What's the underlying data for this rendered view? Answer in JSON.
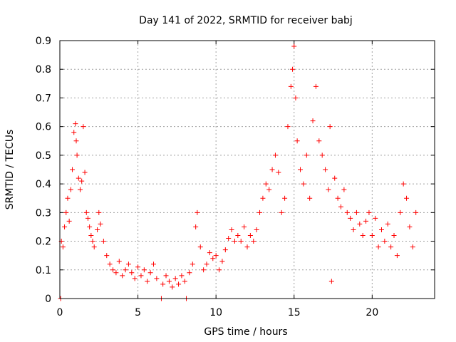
{
  "chart_data": {
    "type": "scatter",
    "title": "Day 141 of 2022, SRMTID for receiver babj",
    "xlabel": "GPS time / hours",
    "ylabel": "SRMTID / TECUs",
    "xlim": [
      0,
      24
    ],
    "ylim": [
      0,
      0.9
    ],
    "xticks": [
      0,
      5,
      10,
      15,
      20
    ],
    "yticks": [
      0,
      0.1,
      0.2,
      0.3,
      0.4,
      0.5,
      0.6,
      0.7,
      0.8,
      0.9
    ],
    "xtick_labels": [
      "0",
      "5",
      "10",
      "15",
      "20"
    ],
    "ytick_labels": [
      "0",
      "0.1",
      "0.2",
      "0.3",
      "0.4",
      "0.5",
      "0.6",
      "0.7",
      "0.8",
      "0.9"
    ],
    "grid": true,
    "marker": "+",
    "color": "#ff0000",
    "series": [
      {
        "name": "SRMTID",
        "points": [
          [
            0.05,
            0.0
          ],
          [
            0.1,
            0.2
          ],
          [
            0.2,
            0.18
          ],
          [
            0.3,
            0.25
          ],
          [
            0.4,
            0.3
          ],
          [
            0.5,
            0.35
          ],
          [
            0.6,
            0.27
          ],
          [
            0.7,
            0.38
          ],
          [
            0.8,
            0.45
          ],
          [
            0.9,
            0.58
          ],
          [
            1.0,
            0.61
          ],
          [
            1.05,
            0.55
          ],
          [
            1.1,
            0.5
          ],
          [
            1.2,
            0.42
          ],
          [
            1.3,
            0.38
          ],
          [
            1.4,
            0.41
          ],
          [
            1.5,
            0.6
          ],
          [
            1.6,
            0.44
          ],
          [
            1.7,
            0.3
          ],
          [
            1.8,
            0.28
          ],
          [
            1.9,
            0.25
          ],
          [
            2.0,
            0.22
          ],
          [
            2.1,
            0.2
          ],
          [
            2.2,
            0.18
          ],
          [
            2.4,
            0.24
          ],
          [
            2.5,
            0.3
          ],
          [
            2.6,
            0.26
          ],
          [
            2.8,
            0.2
          ],
          [
            3.0,
            0.15
          ],
          [
            3.2,
            0.12
          ],
          [
            3.4,
            0.1
          ],
          [
            3.6,
            0.09
          ],
          [
            3.8,
            0.13
          ],
          [
            4.0,
            0.08
          ],
          [
            4.2,
            0.1
          ],
          [
            4.4,
            0.12
          ],
          [
            4.6,
            0.09
          ],
          [
            4.8,
            0.07
          ],
          [
            5.0,
            0.11
          ],
          [
            5.2,
            0.08
          ],
          [
            5.4,
            0.1
          ],
          [
            5.6,
            0.06
          ],
          [
            5.8,
            0.09
          ],
          [
            6.0,
            0.12
          ],
          [
            6.2,
            0.07
          ],
          [
            6.5,
            0.0
          ],
          [
            6.6,
            0.05
          ],
          [
            6.8,
            0.08
          ],
          [
            7.0,
            0.06
          ],
          [
            7.2,
            0.04
          ],
          [
            7.4,
            0.07
          ],
          [
            7.6,
            0.05
          ],
          [
            7.8,
            0.08
          ],
          [
            8.0,
            0.06
          ],
          [
            8.1,
            0.0
          ],
          [
            8.3,
            0.09
          ],
          [
            8.5,
            0.12
          ],
          [
            8.7,
            0.25
          ],
          [
            8.8,
            0.3
          ],
          [
            9.0,
            0.18
          ],
          [
            9.2,
            0.1
          ],
          [
            9.4,
            0.12
          ],
          [
            9.6,
            0.16
          ],
          [
            9.8,
            0.14
          ],
          [
            10.0,
            0.15
          ],
          [
            10.2,
            0.1
          ],
          [
            10.4,
            0.13
          ],
          [
            10.6,
            0.17
          ],
          [
            10.8,
            0.21
          ],
          [
            11.0,
            0.24
          ],
          [
            11.2,
            0.2
          ],
          [
            11.4,
            0.22
          ],
          [
            11.6,
            0.2
          ],
          [
            11.8,
            0.25
          ],
          [
            12.0,
            0.18
          ],
          [
            12.2,
            0.22
          ],
          [
            12.4,
            0.2
          ],
          [
            12.6,
            0.24
          ],
          [
            12.8,
            0.3
          ],
          [
            13.0,
            0.35
          ],
          [
            13.2,
            0.4
          ],
          [
            13.4,
            0.38
          ],
          [
            13.6,
            0.45
          ],
          [
            13.8,
            0.5
          ],
          [
            14.0,
            0.44
          ],
          [
            14.2,
            0.3
          ],
          [
            14.4,
            0.35
          ],
          [
            14.6,
            0.6
          ],
          [
            14.8,
            0.74
          ],
          [
            14.9,
            0.8
          ],
          [
            15.0,
            0.88
          ],
          [
            15.1,
            0.7
          ],
          [
            15.2,
            0.55
          ],
          [
            15.4,
            0.45
          ],
          [
            15.6,
            0.4
          ],
          [
            15.8,
            0.5
          ],
          [
            16.0,
            0.35
          ],
          [
            16.2,
            0.62
          ],
          [
            16.4,
            0.74
          ],
          [
            16.6,
            0.55
          ],
          [
            16.8,
            0.5
          ],
          [
            17.0,
            0.45
          ],
          [
            17.2,
            0.38
          ],
          [
            17.3,
            0.6
          ],
          [
            17.4,
            0.06
          ],
          [
            17.6,
            0.42
          ],
          [
            17.8,
            0.35
          ],
          [
            18.0,
            0.32
          ],
          [
            18.2,
            0.38
          ],
          [
            18.4,
            0.3
          ],
          [
            18.6,
            0.28
          ],
          [
            18.8,
            0.24
          ],
          [
            19.0,
            0.3
          ],
          [
            19.2,
            0.26
          ],
          [
            19.4,
            0.22
          ],
          [
            19.6,
            0.27
          ],
          [
            19.8,
            0.3
          ],
          [
            20.0,
            0.22
          ],
          [
            20.2,
            0.28
          ],
          [
            20.4,
            0.18
          ],
          [
            20.6,
            0.24
          ],
          [
            20.8,
            0.2
          ],
          [
            21.0,
            0.26
          ],
          [
            21.2,
            0.18
          ],
          [
            21.4,
            0.22
          ],
          [
            21.6,
            0.15
          ],
          [
            21.8,
            0.3
          ],
          [
            22.0,
            0.4
          ],
          [
            22.2,
            0.35
          ],
          [
            22.4,
            0.25
          ],
          [
            22.6,
            0.18
          ],
          [
            22.8,
            0.3
          ]
        ]
      }
    ]
  }
}
